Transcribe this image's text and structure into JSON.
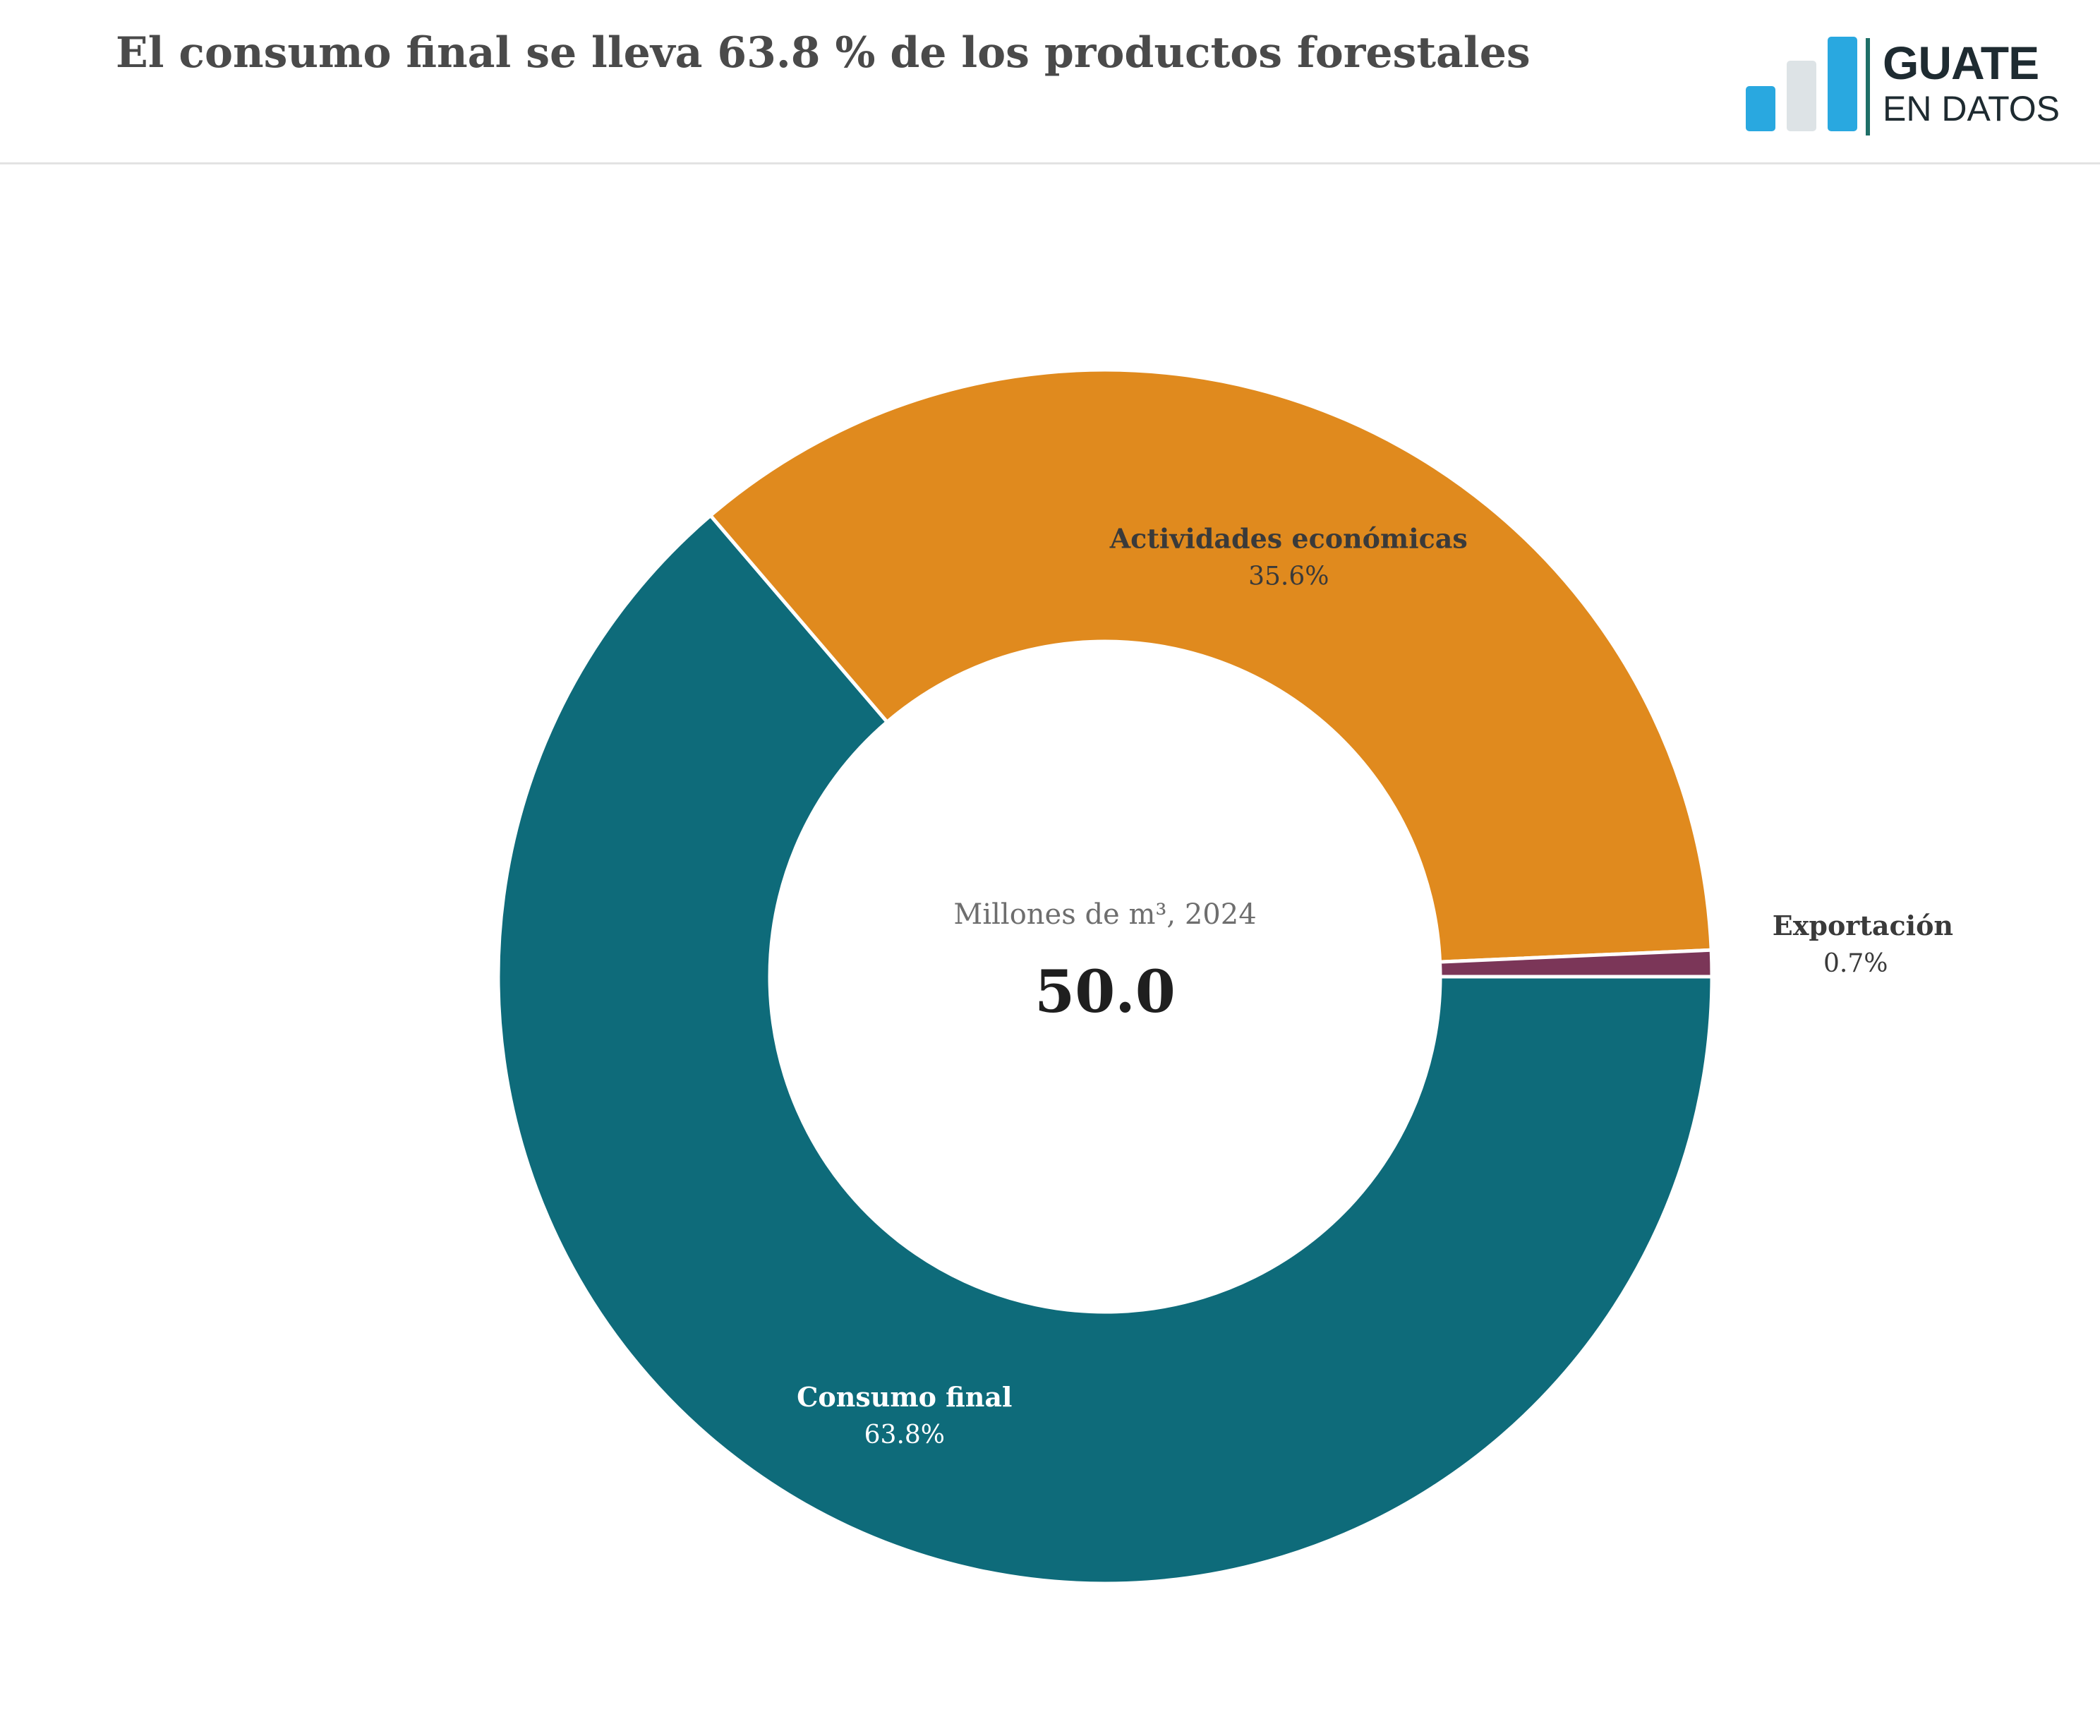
{
  "header": {
    "title": "El consumo final se lleva 63.8 % de los productos forestales"
  },
  "logo": {
    "line1": "GUATE",
    "line2": "EN DATOS",
    "bar_colors": [
      "#29a8e0",
      "#dde3e6",
      "#29a8e0"
    ]
  },
  "chart_data": {
    "type": "pie",
    "donut": true,
    "start_direction": "3 o'clock, clockwise",
    "center_label": "Millones de m³, 2024",
    "center_value": "50.0",
    "slices": [
      {
        "name": "Consumo final",
        "value": 63.8,
        "label": "63.8%",
        "color": "#0e6b7a",
        "label_color": "#ffffff"
      },
      {
        "name": "Actividades económicas",
        "value": 35.6,
        "label": "35.6%",
        "color": "#e08a1e",
        "label_color": "#3a3a3a"
      },
      {
        "name": "Exportación",
        "value": 0.7,
        "label": "0.7%",
        "color": "#7b3658",
        "label_color": "#3a3a3a"
      }
    ]
  }
}
